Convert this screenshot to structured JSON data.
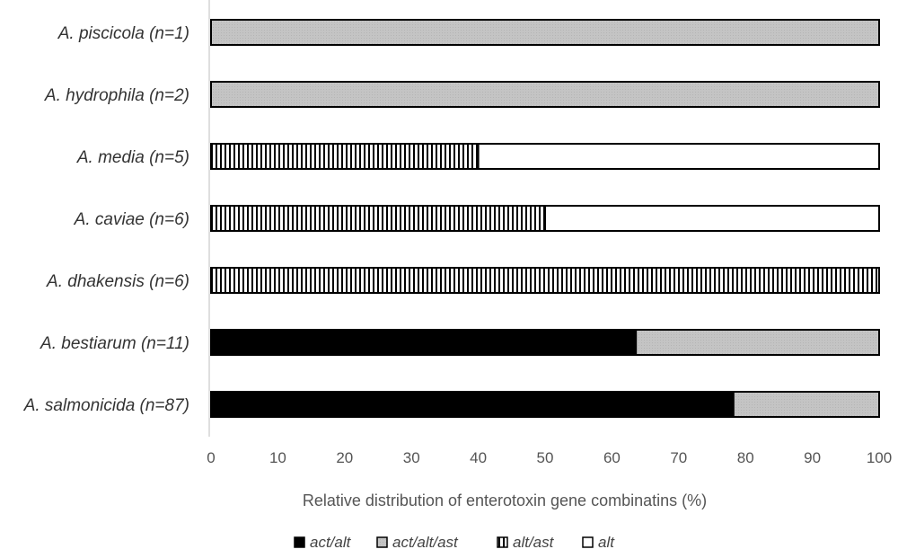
{
  "chart_data": {
    "type": "bar",
    "orientation": "horizontal",
    "stacked": true,
    "categories": [
      "A. piscicola (n=1)",
      "A. hydrophila (n=2)",
      "A. media (n=5)",
      "A. caviae (n=6)",
      "A. dhakensis (n=6)",
      "A. bestiarum (n=11)",
      "A. salmonicida (n=87)"
    ],
    "series": [
      {
        "name": "act/alt",
        "pattern": "solid-black",
        "values": [
          0,
          0,
          0,
          0,
          0,
          63.6,
          78.2
        ]
      },
      {
        "name": "act/alt/ast",
        "pattern": "gray",
        "values": [
          100,
          100,
          0,
          0,
          0,
          36.4,
          21.8
        ]
      },
      {
        "name": "alt/ast",
        "pattern": "vertical-stripes",
        "values": [
          0,
          0,
          40,
          50,
          100,
          0,
          0
        ]
      },
      {
        "name": "alt",
        "pattern": "white",
        "values": [
          0,
          0,
          60,
          50,
          0,
          0,
          0
        ]
      }
    ],
    "xlabel": "Relative distribution of enterotoxin gene combinatins (%)",
    "ylabel": "",
    "xlim": [
      0,
      100
    ],
    "xticks": [
      "0",
      "10",
      "20",
      "30",
      "40",
      "50",
      "60",
      "70",
      "80",
      "90",
      "100"
    ],
    "grid": false,
    "legend_position": "bottom"
  },
  "colors": {
    "black": "#000000",
    "gray": "#c0c0c0",
    "white": "#ffffff",
    "stroke": "#000000",
    "axis": "#bfbfbf"
  }
}
